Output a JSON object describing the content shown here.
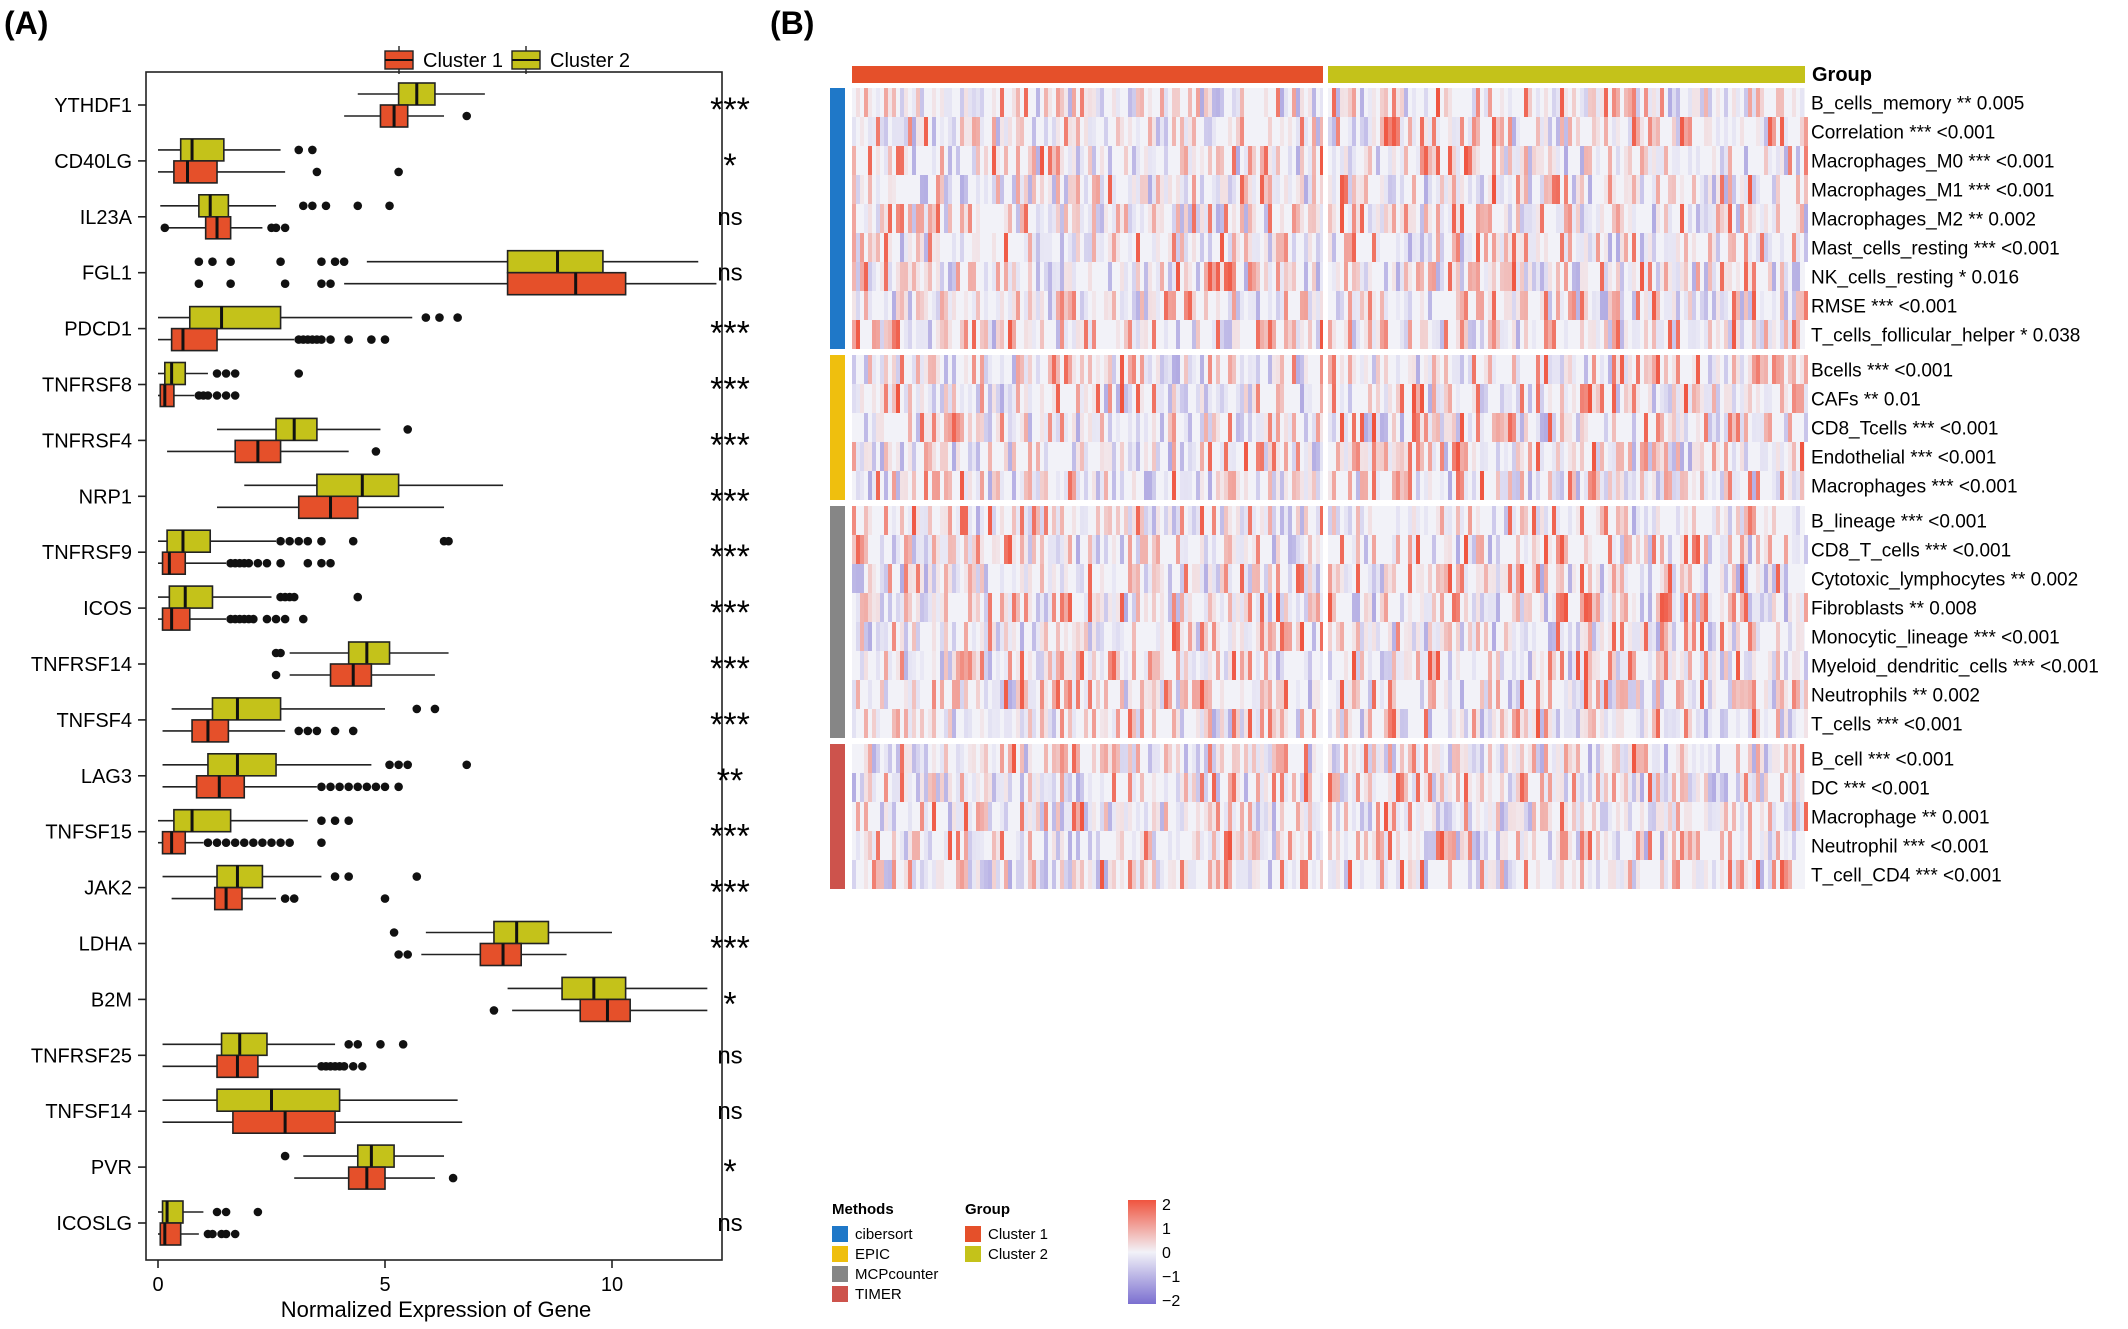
{
  "chart_data": [
    {
      "panel_label": "(A)",
      "type": "box",
      "xlabel": "Normalized Expression of Gene",
      "xlim": [
        0,
        13
      ],
      "xticks": [
        0,
        5,
        10
      ],
      "legend": {
        "position": "top",
        "entries": [
          {
            "name": "Cluster 1",
            "color": "#E5502A"
          },
          {
            "name": "Cluster 2",
            "color": "#C4C21A"
          }
        ]
      },
      "genes": [
        {
          "name": "YTHDF1",
          "sig": "***",
          "cluster2": {
            "whislo": 4.4,
            "q1": 5.3,
            "med": 5.7,
            "q3": 6.1,
            "whishi": 7.2,
            "outliers": []
          },
          "cluster1": {
            "whislo": 4.1,
            "q1": 4.9,
            "med": 5.2,
            "q3": 5.5,
            "whishi": 6.3,
            "outliers": [
              6.8
            ]
          }
        },
        {
          "name": "CD40LG",
          "sig": "*",
          "cluster2": {
            "whislo": 0.0,
            "q1": 0.5,
            "med": 0.75,
            "q3": 1.45,
            "whishi": 2.7,
            "outliers": [
              3.1,
              3.4
            ]
          },
          "cluster1": {
            "whislo": 0.0,
            "q1": 0.35,
            "med": 0.65,
            "q3": 1.3,
            "whishi": 2.8,
            "outliers": [
              3.5,
              5.3
            ]
          }
        },
        {
          "name": "IL23A",
          "sig": "ns",
          "cluster2": {
            "whislo": 0.05,
            "q1": 0.9,
            "med": 1.15,
            "q3": 1.55,
            "whishi": 2.6,
            "outliers": [
              3.2,
              3.4,
              3.7,
              4.4,
              5.1
            ]
          },
          "cluster1": {
            "whislo": 0.2,
            "q1": 1.05,
            "med": 1.3,
            "q3": 1.6,
            "whishi": 2.3,
            "outliers": [
              0.15,
              2.5,
              2.6,
              2.8
            ]
          }
        },
        {
          "name": "FGL1",
          "sig": "ns",
          "cluster2": {
            "whislo": 4.6,
            "q1": 7.7,
            "med": 8.8,
            "q3": 9.8,
            "whishi": 11.9,
            "outliers": [
              0.9,
              1.2,
              1.6,
              2.7,
              3.6,
              3.9,
              4.1
            ]
          },
          "cluster1": {
            "whislo": 4.1,
            "q1": 7.7,
            "med": 9.2,
            "q3": 10.3,
            "whishi": 12.3,
            "outliers": [
              0.9,
              1.6,
              2.8,
              3.6,
              3.8
            ]
          }
        },
        {
          "name": "PDCD1",
          "sig": "***",
          "cluster2": {
            "whislo": 0.0,
            "q1": 0.7,
            "med": 1.4,
            "q3": 2.7,
            "whishi": 5.6,
            "outliers": [
              5.9,
              6.2,
              6.6
            ]
          },
          "cluster1": {
            "whislo": 0.0,
            "q1": 0.3,
            "med": 0.55,
            "q3": 1.3,
            "whishi": 3.0,
            "outliers": [
              3.1,
              3.2,
              3.3,
              3.4,
              3.5,
              3.6,
              3.8,
              4.2,
              4.7,
              5.0
            ]
          }
        },
        {
          "name": "TNFRSF8",
          "sig": "***",
          "cluster2": {
            "whislo": 0.0,
            "q1": 0.15,
            "med": 0.3,
            "q3": 0.6,
            "whishi": 1.1,
            "outliers": [
              1.3,
              1.5,
              1.7,
              3.1
            ]
          },
          "cluster1": {
            "whislo": 0.0,
            "q1": 0.05,
            "med": 0.15,
            "q3": 0.35,
            "whishi": 0.8,
            "outliers": [
              0.9,
              1.0,
              1.1,
              1.3,
              1.5,
              1.7
            ]
          }
        },
        {
          "name": "TNFRSF4",
          "sig": "***",
          "cluster2": {
            "whislo": 1.3,
            "q1": 2.6,
            "med": 3.0,
            "q3": 3.5,
            "whishi": 4.9,
            "outliers": [
              5.5
            ]
          },
          "cluster1": {
            "whislo": 0.2,
            "q1": 1.7,
            "med": 2.2,
            "q3": 2.7,
            "whishi": 4.2,
            "outliers": [
              4.8
            ]
          }
        },
        {
          "name": "NRP1",
          "sig": "***",
          "cluster2": {
            "whislo": 1.9,
            "q1": 3.5,
            "med": 4.5,
            "q3": 5.3,
            "whishi": 7.6,
            "outliers": []
          },
          "cluster1": {
            "whislo": 1.3,
            "q1": 3.1,
            "med": 3.8,
            "q3": 4.4,
            "whishi": 6.3,
            "outliers": []
          }
        },
        {
          "name": "TNFRSF9",
          "sig": "***",
          "cluster2": {
            "whislo": 0.0,
            "q1": 0.2,
            "med": 0.55,
            "q3": 1.15,
            "whishi": 2.6,
            "outliers": [
              2.7,
              2.9,
              3.1,
              3.3,
              3.6,
              4.3,
              6.3,
              6.4
            ]
          },
          "cluster1": {
            "whislo": 0.0,
            "q1": 0.1,
            "med": 0.25,
            "q3": 0.6,
            "whishi": 1.5,
            "outliers": [
              1.6,
              1.7,
              1.8,
              1.9,
              2.0,
              2.2,
              2.4,
              2.7,
              3.3,
              3.6,
              3.8
            ]
          }
        },
        {
          "name": "ICOS",
          "sig": "***",
          "cluster2": {
            "whislo": 0.0,
            "q1": 0.25,
            "med": 0.6,
            "q3": 1.2,
            "whishi": 2.5,
            "outliers": [
              2.7,
              2.8,
              2.9,
              3.0,
              4.4
            ]
          },
          "cluster1": {
            "whislo": 0.0,
            "q1": 0.1,
            "med": 0.3,
            "q3": 0.7,
            "whishi": 1.5,
            "outliers": [
              1.6,
              1.7,
              1.8,
              1.9,
              2.0,
              2.1,
              2.4,
              2.6,
              2.8,
              3.2
            ]
          }
        },
        {
          "name": "TNFRSF14",
          "sig": "***",
          "cluster2": {
            "whislo": 2.9,
            "q1": 4.2,
            "med": 4.6,
            "q3": 5.1,
            "whishi": 6.4,
            "outliers": [
              2.6,
              2.7
            ]
          },
          "cluster1": {
            "whislo": 2.9,
            "q1": 3.8,
            "med": 4.3,
            "q3": 4.7,
            "whishi": 6.1,
            "outliers": [
              2.6
            ]
          }
        },
        {
          "name": "TNFSF4",
          "sig": "***",
          "cluster2": {
            "whislo": 0.3,
            "q1": 1.2,
            "med": 1.75,
            "q3": 2.7,
            "whishi": 5.0,
            "outliers": [
              5.7,
              6.1
            ]
          },
          "cluster1": {
            "whislo": 0.1,
            "q1": 0.75,
            "med": 1.1,
            "q3": 1.55,
            "whishi": 2.8,
            "outliers": [
              3.1,
              3.3,
              3.5,
              3.9,
              4.3
            ]
          }
        },
        {
          "name": "LAG3",
          "sig": "**",
          "cluster2": {
            "whislo": 0.1,
            "q1": 1.1,
            "med": 1.75,
            "q3": 2.6,
            "whishi": 4.7,
            "outliers": [
              5.1,
              5.3,
              5.5,
              6.8
            ]
          },
          "cluster1": {
            "whislo": 0.1,
            "q1": 0.85,
            "med": 1.35,
            "q3": 1.9,
            "whishi": 3.5,
            "outliers": [
              3.6,
              3.8,
              4.0,
              4.2,
              4.4,
              4.6,
              4.8,
              5.0,
              5.3
            ]
          }
        },
        {
          "name": "TNFSF15",
          "sig": "***",
          "cluster2": {
            "whislo": 0.0,
            "q1": 0.35,
            "med": 0.75,
            "q3": 1.6,
            "whishi": 3.3,
            "outliers": [
              3.6,
              3.9,
              4.2
            ]
          },
          "cluster1": {
            "whislo": 0.0,
            "q1": 0.1,
            "med": 0.3,
            "q3": 0.6,
            "whishi": 1.0,
            "outliers": [
              1.1,
              1.3,
              1.5,
              1.7,
              1.9,
              2.1,
              2.3,
              2.5,
              2.7,
              2.9,
              3.6
            ]
          }
        },
        {
          "name": "JAK2",
          "sig": "***",
          "cluster2": {
            "whislo": 0.1,
            "q1": 1.3,
            "med": 1.75,
            "q3": 2.3,
            "whishi": 3.6,
            "outliers": [
              3.9,
              4.2,
              5.7
            ]
          },
          "cluster1": {
            "whislo": 0.3,
            "q1": 1.25,
            "med": 1.5,
            "q3": 1.85,
            "whishi": 2.6,
            "outliers": [
              2.8,
              3.0,
              5.0
            ]
          }
        },
        {
          "name": "LDHA",
          "sig": "***",
          "cluster2": {
            "whislo": 5.9,
            "q1": 7.4,
            "med": 7.9,
            "q3": 8.6,
            "whishi": 10.0,
            "outliers": [
              5.2
            ]
          },
          "cluster1": {
            "whislo": 5.8,
            "q1": 7.1,
            "med": 7.6,
            "q3": 8.0,
            "whishi": 9.0,
            "outliers": [
              5.3,
              5.5
            ]
          }
        },
        {
          "name": "B2M",
          "sig": "*",
          "cluster2": {
            "whislo": 7.7,
            "q1": 8.9,
            "med": 9.6,
            "q3": 10.3,
            "whishi": 12.1,
            "outliers": []
          },
          "cluster1": {
            "whislo": 7.8,
            "q1": 9.3,
            "med": 9.9,
            "q3": 10.4,
            "whishi": 12.1,
            "outliers": [
              7.4
            ]
          }
        },
        {
          "name": "TNFRSF25",
          "sig": "ns",
          "cluster2": {
            "whislo": 0.1,
            "q1": 1.4,
            "med": 1.8,
            "q3": 2.4,
            "whishi": 3.9,
            "outliers": [
              4.2,
              4.4,
              4.9,
              5.4
            ]
          },
          "cluster1": {
            "whislo": 0.1,
            "q1": 1.3,
            "med": 1.75,
            "q3": 2.2,
            "whishi": 3.5,
            "outliers": [
              3.6,
              3.7,
              3.8,
              3.9,
              4.0,
              4.1,
              4.3,
              4.5
            ]
          }
        },
        {
          "name": "TNFSF14",
          "sig": "ns",
          "cluster2": {
            "whislo": 0.1,
            "q1": 1.3,
            "med": 2.5,
            "q3": 4.0,
            "whishi": 6.6,
            "outliers": []
          },
          "cluster1": {
            "whislo": 0.1,
            "q1": 1.65,
            "med": 2.8,
            "q3": 3.9,
            "whishi": 6.7,
            "outliers": []
          }
        },
        {
          "name": "PVR",
          "sig": "*",
          "cluster2": {
            "whislo": 3.2,
            "q1": 4.4,
            "med": 4.7,
            "q3": 5.2,
            "whishi": 6.3,
            "outliers": [
              2.8
            ]
          },
          "cluster1": {
            "whislo": 3.0,
            "q1": 4.2,
            "med": 4.6,
            "q3": 5.0,
            "whishi": 6.1,
            "outliers": [
              6.5
            ]
          }
        },
        {
          "name": "ICOSLG",
          "sig": "ns",
          "cluster2": {
            "whislo": 0.0,
            "q1": 0.1,
            "med": 0.2,
            "q3": 0.55,
            "whishi": 1.0,
            "outliers": [
              1.3,
              1.5,
              2.2
            ]
          },
          "cluster1": {
            "whislo": 0.0,
            "q1": 0.05,
            "med": 0.15,
            "q3": 0.5,
            "whishi": 0.9,
            "outliers": [
              1.1,
              1.2,
              1.4,
              1.5,
              1.7
            ]
          }
        }
      ]
    },
    {
      "panel_label": "(B)",
      "type": "heatmap",
      "group_label": "Group",
      "groups": [
        {
          "name": "Cluster 1",
          "color": "#E5502A"
        },
        {
          "name": "Cluster 2",
          "color": "#C4C21A"
        }
      ],
      "methods": [
        {
          "name": "cibersort",
          "color": "#1F78C8",
          "rows": [
            "B_cells_memory ** 0.005",
            "Correlation *** <0.001",
            "Macrophages_M0 *** <0.001",
            "Macrophages_M1 *** <0.001",
            "Macrophages_M2 ** 0.002",
            "Mast_cells_resting *** <0.001",
            "NK_cells_resting * 0.016",
            "RMSE *** <0.001",
            "T_cells_follicular_helper * 0.038"
          ]
        },
        {
          "name": "EPIC",
          "color": "#EFBF0E",
          "rows": [
            "Bcells *** <0.001",
            "CAFs ** 0.01",
            "CD8_Tcells *** <0.001",
            "Endothelial *** <0.001",
            "Macrophages *** <0.001"
          ]
        },
        {
          "name": "MCPcounter",
          "color": "#868686",
          "rows": [
            "B_lineage *** <0.001",
            "CD8_T_cells *** <0.001",
            "Cytotoxic_lymphocytes ** 0.002",
            "Fibroblasts ** 0.008",
            "Monocytic_lineage *** <0.001",
            "Myeloid_dendritic_cells *** <0.001",
            "Neutrophils ** 0.002",
            "T_cells *** <0.001"
          ]
        },
        {
          "name": "TIMER",
          "color": "#CD534C",
          "rows": [
            "B_cell *** <0.001",
            "DC *** <0.001",
            "Macrophage ** 0.001",
            "Neutrophil *** <0.001",
            "T_cell_CD4 *** <0.001"
          ]
        }
      ],
      "legend": {
        "methods_title": "Methods",
        "group_title": "Group",
        "colorbar_ticks": [
          "2",
          "1",
          "0",
          "−1",
          "−2"
        ],
        "colorbar_range": [
          -2,
          2
        ],
        "low_color": "#7B6FD0",
        "mid_color": "#F2F2F8",
        "high_color": "#F0543F"
      }
    }
  ]
}
